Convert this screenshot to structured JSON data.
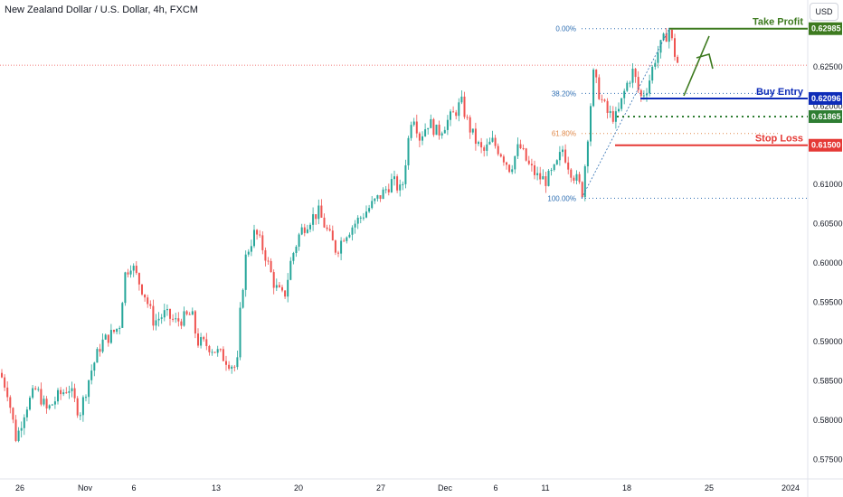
{
  "title": "New Zealand Dollar / U.S. Dollar, 4h, FXCM",
  "currency_button": "USD",
  "colors": {
    "up": "#26a69a",
    "down": "#ef5350",
    "take_profit": "#3d7a1f",
    "buy_entry": "#0d2bb8",
    "intermediate": "#2e7d32",
    "stop_loss": "#e53935",
    "fib_blue": "#2f6fb3",
    "fib_orange": "#e0894a"
  },
  "chart_data": {
    "type": "candlestick",
    "y_range": [
      0.5725,
      0.6335
    ],
    "y_ticks": [
      "0.62500",
      "0.62000",
      "0.61000",
      "0.60500",
      "0.60000",
      "0.59500",
      "0.59000",
      "0.58500",
      "0.58000",
      "0.57500"
    ],
    "x_ticks": [
      "26",
      "Nov",
      "6",
      "13",
      "20",
      "27",
      "Dec",
      "6",
      "11",
      "18",
      "25",
      "2024"
    ],
    "price_levels": [
      {
        "label": "Take Profit",
        "value": "0.62985",
        "price": 0.62985
      },
      {
        "label": "Buy Entry",
        "value": "0.62096",
        "price": 0.62096
      },
      {
        "label": "",
        "value": "0.61865",
        "price": 0.61865
      },
      {
        "label": "Stop Loss",
        "value": "0.61500",
        "price": 0.615
      }
    ],
    "fibonacci": [
      {
        "label": "0.00%",
        "price": 0.62985
      },
      {
        "label": "38.20%",
        "price": 0.6216
      },
      {
        "label": "61.80%",
        "price": 0.6165
      },
      {
        "label": "100.00%",
        "price": 0.60825
      }
    ],
    "current_price": 0.6252,
    "path": [
      [
        0,
        0.586
      ],
      [
        8,
        0.5838
      ],
      [
        18,
        0.5775
      ],
      [
        28,
        0.5815
      ],
      [
        40,
        0.584
      ],
      [
        52,
        0.5812
      ],
      [
        64,
        0.583
      ],
      [
        76,
        0.5842
      ],
      [
        88,
        0.5808
      ],
      [
        100,
        0.586
      ],
      [
        112,
        0.5898
      ],
      [
        124,
        0.591
      ],
      [
        132,
        0.592
      ],
      [
        138,
        0.5985
      ],
      [
        145,
        0.6
      ],
      [
        152,
        0.598
      ],
      [
        160,
        0.596
      ],
      [
        170,
        0.5925
      ],
      [
        182,
        0.5935
      ],
      [
        194,
        0.5925
      ],
      [
        204,
        0.593
      ],
      [
        212,
        0.5935
      ],
      [
        218,
        0.59
      ],
      [
        230,
        0.5895
      ],
      [
        242,
        0.5885
      ],
      [
        252,
        0.5875
      ],
      [
        262,
        0.5865
      ],
      [
        266,
        0.5945
      ],
      [
        272,
        0.601
      ],
      [
        282,
        0.604
      ],
      [
        292,
        0.6015
      ],
      [
        304,
        0.597
      ],
      [
        314,
        0.5955
      ],
      [
        322,
        0.6005
      ],
      [
        332,
        0.604
      ],
      [
        342,
        0.6055
      ],
      [
        352,
        0.6065
      ],
      [
        362,
        0.604
      ],
      [
        372,
        0.6015
      ],
      [
        380,
        0.6035
      ],
      [
        392,
        0.605
      ],
      [
        404,
        0.6065
      ],
      [
        412,
        0.6075
      ],
      [
        424,
        0.609
      ],
      [
        434,
        0.6105
      ],
      [
        444,
        0.609
      ],
      [
        450,
        0.6145
      ],
      [
        456,
        0.6195
      ],
      [
        464,
        0.616
      ],
      [
        474,
        0.618
      ],
      [
        484,
        0.6165
      ],
      [
        494,
        0.618
      ],
      [
        502,
        0.619
      ],
      [
        510,
        0.6205
      ],
      [
        518,
        0.6175
      ],
      [
        526,
        0.6155
      ],
      [
        534,
        0.614
      ],
      [
        544,
        0.6155
      ],
      [
        554,
        0.614
      ],
      [
        564,
        0.612
      ],
      [
        574,
        0.615
      ],
      [
        584,
        0.6125
      ],
      [
        594,
        0.611
      ],
      [
        604,
        0.6105
      ],
      [
        614,
        0.612
      ],
      [
        622,
        0.6145
      ],
      [
        630,
        0.612
      ],
      [
        638,
        0.6105
      ],
      [
        644,
        0.609
      ],
      [
        650,
        0.6165
      ],
      [
        656,
        0.624
      ],
      [
        664,
        0.621
      ],
      [
        672,
        0.619
      ],
      [
        682,
        0.6185
      ],
      [
        692,
        0.6225
      ],
      [
        700,
        0.6245
      ],
      [
        708,
        0.621
      ],
      [
        716,
        0.6225
      ],
      [
        724,
        0.626
      ],
      [
        732,
        0.628
      ],
      [
        740,
        0.6298
      ],
      [
        745,
        0.627
      ],
      [
        750,
        0.6252
      ]
    ]
  }
}
